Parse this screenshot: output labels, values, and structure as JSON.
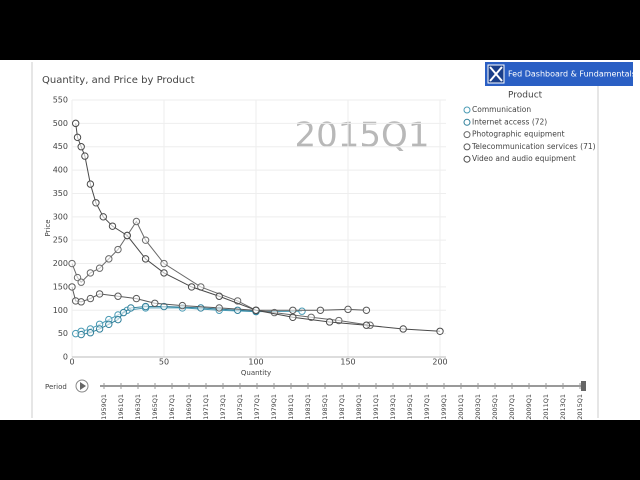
{
  "chart_data": {
    "type": "scatter",
    "title": "Quantity, and Price by Product",
    "x_label": "Quantity",
    "y_label": "Price",
    "watermark": "2015Q1",
    "legend_title": "Product",
    "xlim": [
      0,
      200
    ],
    "xticks": [
      0,
      50,
      100,
      150,
      200
    ],
    "ylim": [
      0,
      550
    ],
    "yticks": [
      0,
      50,
      100,
      150,
      200,
      250,
      300,
      350,
      400,
      450,
      500,
      550
    ],
    "grid": true,
    "legend": "upper right",
    "series": [
      {
        "name": "Communication",
        "color": "#4a9bb5",
        "x": [
          2,
          5,
          10,
          15,
          20,
          25,
          30,
          40,
          60,
          80,
          100,
          125
        ],
        "values": [
          50,
          55,
          60,
          70,
          80,
          90,
          100,
          105,
          105,
          100,
          97,
          98
        ]
      },
      {
        "name": "Internet access (72)",
        "color": "#2f7f9a",
        "x": [
          5,
          10,
          15,
          20,
          25,
          28,
          32,
          40,
          50,
          70,
          90,
          100
        ],
        "values": [
          48,
          52,
          60,
          70,
          80,
          95,
          105,
          108,
          108,
          105,
          100,
          98
        ]
      },
      {
        "name": "Photographic equipment",
        "color": "#6a6a6a",
        "x": [
          0,
          3,
          5,
          10,
          15,
          20,
          25,
          30,
          35,
          40,
          50,
          70,
          90,
          100,
          110,
          130,
          145,
          162
        ],
        "values": [
          200,
          170,
          160,
          180,
          190,
          210,
          230,
          260,
          290,
          250,
          200,
          150,
          120,
          100,
          95,
          85,
          78,
          68
        ]
      },
      {
        "name": "Telecommunication services (71)",
        "color": "#5a5a5a",
        "x": [
          0,
          2,
          5,
          10,
          15,
          25,
          35,
          45,
          60,
          80,
          100,
          120,
          135,
          150,
          160
        ],
        "values": [
          150,
          120,
          118,
          125,
          135,
          130,
          125,
          115,
          110,
          105,
          100,
          100,
          100,
          102,
          100
        ]
      },
      {
        "name": "Video and audio equipment",
        "color": "#4a4a4a",
        "x": [
          2,
          3,
          5,
          7,
          10,
          13,
          17,
          22,
          30,
          40,
          50,
          65,
          80,
          100,
          120,
          140,
          160,
          180,
          200
        ],
        "values": [
          500,
          470,
          450,
          430,
          370,
          330,
          300,
          280,
          260,
          210,
          180,
          150,
          130,
          100,
          85,
          75,
          68,
          60,
          55
        ]
      }
    ]
  },
  "ui": {
    "button": "Fed Dashboard & Fundamentals",
    "period_label": "Period",
    "periods": [
      "1959Q1",
      "1961Q1",
      "1963Q1",
      "1965Q1",
      "1967Q1",
      "1969Q1",
      "1971Q1",
      "1973Q1",
      "1975Q1",
      "1977Q1",
      "1979Q1",
      "1981Q1",
      "1983Q1",
      "1985Q1",
      "1987Q1",
      "1989Q1",
      "1991Q1",
      "1993Q1",
      "1995Q1",
      "1997Q1",
      "1999Q1",
      "2001Q1",
      "2003Q1",
      "2005Q1",
      "2007Q1",
      "2009Q1",
      "2011Q1",
      "2013Q1",
      "2015Q1"
    ]
  }
}
